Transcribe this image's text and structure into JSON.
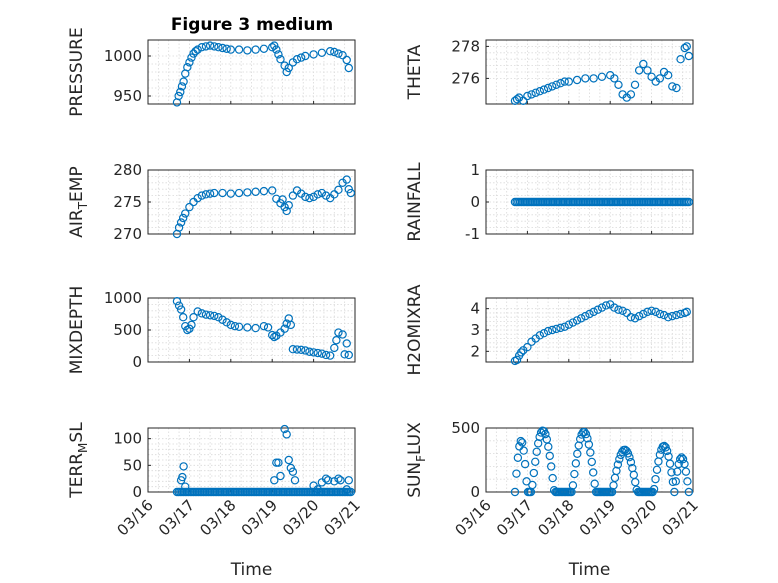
{
  "figure": {
    "title": "Figure 3 medium",
    "x_tick_labels": [
      "03/16",
      "03/17",
      "03/18",
      "03/19",
      "03/20",
      "03/21"
    ],
    "x_range": [
      0,
      5
    ],
    "x_label": "Time",
    "marker_color": "#0072BD"
  },
  "chart_data": [
    {
      "type": "scatter",
      "ylabel_main": "PRESSURE",
      "ylabel_sub": "",
      "ylim": [
        940,
        1020
      ],
      "yticks": [
        950,
        1000
      ],
      "ytick_labels": [
        "950",
        "1000"
      ],
      "x_from": 0.7,
      "x_to": 4.9,
      "points": [
        [
          0.7,
          942
        ],
        [
          0.74,
          950
        ],
        [
          0.78,
          955
        ],
        [
          0.82,
          962
        ],
        [
          0.86,
          968
        ],
        [
          0.9,
          978
        ],
        [
          0.95,
          986
        ],
        [
          1.0,
          992
        ],
        [
          1.05,
          998
        ],
        [
          1.1,
          1003
        ],
        [
          1.15,
          1006
        ],
        [
          1.2,
          1008
        ],
        [
          1.3,
          1011
        ],
        [
          1.4,
          1012
        ],
        [
          1.5,
          1013
        ],
        [
          1.6,
          1012
        ],
        [
          1.7,
          1011
        ],
        [
          1.8,
          1010
        ],
        [
          1.9,
          1009
        ],
        [
          2.0,
          1008
        ],
        [
          2.2,
          1008
        ],
        [
          2.4,
          1007
        ],
        [
          2.6,
          1008
        ],
        [
          2.8,
          1009
        ],
        [
          3.0,
          1011
        ],
        [
          3.05,
          1013
        ],
        [
          3.1,
          1008
        ],
        [
          3.15,
          1002
        ],
        [
          3.2,
          996
        ],
        [
          3.3,
          988
        ],
        [
          3.35,
          980
        ],
        [
          3.4,
          985
        ],
        [
          3.5,
          992
        ],
        [
          3.6,
          996
        ],
        [
          3.7,
          998
        ],
        [
          3.8,
          1000
        ],
        [
          4.0,
          1002
        ],
        [
          4.2,
          1004
        ],
        [
          4.4,
          1006
        ],
        [
          4.5,
          1005
        ],
        [
          4.6,
          1003
        ],
        [
          4.7,
          1001
        ],
        [
          4.8,
          995
        ],
        [
          4.85,
          985
        ]
      ]
    },
    {
      "type": "scatter",
      "ylabel_main": "THETA",
      "ylabel_sub": "",
      "ylim": [
        274.4,
        278.4
      ],
      "yticks": [
        276,
        278
      ],
      "ytick_labels": [
        "276",
        "278"
      ],
      "x_from": 0.7,
      "x_to": 4.9,
      "points": [
        [
          0.7,
          274.6
        ],
        [
          0.75,
          274.7
        ],
        [
          0.8,
          274.8
        ],
        [
          0.9,
          274.6
        ],
        [
          1.0,
          274.9
        ],
        [
          1.1,
          275.0
        ],
        [
          1.2,
          275.1
        ],
        [
          1.3,
          275.2
        ],
        [
          1.4,
          275.3
        ],
        [
          1.5,
          275.4
        ],
        [
          1.6,
          275.5
        ],
        [
          1.7,
          275.6
        ],
        [
          1.8,
          275.7
        ],
        [
          1.9,
          275.8
        ],
        [
          2.0,
          275.8
        ],
        [
          2.2,
          275.9
        ],
        [
          2.4,
          276.0
        ],
        [
          2.6,
          276.0
        ],
        [
          2.8,
          276.1
        ],
        [
          3.0,
          276.2
        ],
        [
          3.1,
          276.0
        ],
        [
          3.2,
          275.6
        ],
        [
          3.3,
          275.0
        ],
        [
          3.4,
          274.8
        ],
        [
          3.5,
          275.0
        ],
        [
          3.6,
          275.6
        ],
        [
          3.7,
          276.5
        ],
        [
          3.8,
          276.9
        ],
        [
          3.9,
          276.5
        ],
        [
          4.0,
          276.1
        ],
        [
          4.1,
          275.8
        ],
        [
          4.2,
          276.0
        ],
        [
          4.3,
          276.4
        ],
        [
          4.4,
          276.2
        ],
        [
          4.5,
          275.5
        ],
        [
          4.6,
          275.4
        ],
        [
          4.7,
          277.2
        ],
        [
          4.8,
          277.9
        ],
        [
          4.85,
          278.0
        ],
        [
          4.9,
          277.4
        ]
      ]
    },
    {
      "type": "scatter",
      "ylabel_main": "AIR",
      "ylabel_sub": "T",
      "ylabel_tail": "EMP",
      "ylim": [
        270,
        280
      ],
      "yticks": [
        270,
        275,
        280
      ],
      "ytick_labels": [
        "270",
        "275",
        "280"
      ],
      "x_from": 0.7,
      "x_to": 4.9,
      "points": [
        [
          0.7,
          270.0
        ],
        [
          0.75,
          271.0
        ],
        [
          0.8,
          271.8
        ],
        [
          0.85,
          272.5
        ],
        [
          0.9,
          273.2
        ],
        [
          1.0,
          274.2
        ],
        [
          1.1,
          275.0
        ],
        [
          1.2,
          275.6
        ],
        [
          1.3,
          276.0
        ],
        [
          1.4,
          276.2
        ],
        [
          1.5,
          276.3
        ],
        [
          1.6,
          276.4
        ],
        [
          1.8,
          276.4
        ],
        [
          2.0,
          276.3
        ],
        [
          2.2,
          276.4
        ],
        [
          2.4,
          276.5
        ],
        [
          2.6,
          276.6
        ],
        [
          2.8,
          276.7
        ],
        [
          3.0,
          276.8
        ],
        [
          3.1,
          275.5
        ],
        [
          3.2,
          274.8
        ],
        [
          3.25,
          275.4
        ],
        [
          3.3,
          274.2
        ],
        [
          3.35,
          273.6
        ],
        [
          3.4,
          274.5
        ],
        [
          3.5,
          276.0
        ],
        [
          3.6,
          276.8
        ],
        [
          3.7,
          276.3
        ],
        [
          3.8,
          275.8
        ],
        [
          3.9,
          275.6
        ],
        [
          4.0,
          275.8
        ],
        [
          4.1,
          276.2
        ],
        [
          4.2,
          276.4
        ],
        [
          4.3,
          276.0
        ],
        [
          4.4,
          275.6
        ],
        [
          4.5,
          276.2
        ],
        [
          4.6,
          276.9
        ],
        [
          4.7,
          278.0
        ],
        [
          4.8,
          278.5
        ],
        [
          4.85,
          277.0
        ],
        [
          4.9,
          276.4
        ]
      ]
    },
    {
      "type": "scatter",
      "ylabel_main": "RAINFALL",
      "ylabel_sub": "",
      "ylim": [
        -1,
        1
      ],
      "yticks": [
        -1,
        0,
        1
      ],
      "ytick_labels": [
        "-1",
        "0",
        "1"
      ],
      "x_from": 0.7,
      "x_to": 4.9,
      "constant_value": 0,
      "points": []
    },
    {
      "type": "scatter",
      "ylabel_main": "MIXDEPTH",
      "ylabel_sub": "",
      "ylim": [
        0,
        1000
      ],
      "yticks": [
        0,
        500,
        1000
      ],
      "ytick_labels": [
        "0",
        "500",
        "1000"
      ],
      "x_from": 0.7,
      "x_to": 4.9,
      "points": [
        [
          0.7,
          950
        ],
        [
          0.75,
          880
        ],
        [
          0.8,
          820
        ],
        [
          0.85,
          700
        ],
        [
          0.9,
          560
        ],
        [
          0.95,
          500
        ],
        [
          1.0,
          520
        ],
        [
          1.05,
          580
        ],
        [
          1.1,
          700
        ],
        [
          1.2,
          790
        ],
        [
          1.3,
          760
        ],
        [
          1.4,
          740
        ],
        [
          1.5,
          730
        ],
        [
          1.6,
          720
        ],
        [
          1.7,
          700
        ],
        [
          1.8,
          660
        ],
        [
          1.9,
          620
        ],
        [
          2.0,
          580
        ],
        [
          2.1,
          560
        ],
        [
          2.2,
          550
        ],
        [
          2.4,
          540
        ],
        [
          2.6,
          530
        ],
        [
          2.8,
          560
        ],
        [
          2.9,
          540
        ],
        [
          3.0,
          420
        ],
        [
          3.05,
          390
        ],
        [
          3.1,
          410
        ],
        [
          3.2,
          460
        ],
        [
          3.3,
          520
        ],
        [
          3.35,
          600
        ],
        [
          3.4,
          680
        ],
        [
          3.45,
          580
        ],
        [
          3.5,
          200
        ],
        [
          3.6,
          195
        ],
        [
          3.7,
          190
        ],
        [
          3.8,
          180
        ],
        [
          3.9,
          160
        ],
        [
          4.0,
          150
        ],
        [
          4.1,
          140
        ],
        [
          4.2,
          130
        ],
        [
          4.3,
          110
        ],
        [
          4.4,
          100
        ],
        [
          4.5,
          220
        ],
        [
          4.55,
          340
        ],
        [
          4.6,
          460
        ],
        [
          4.7,
          430
        ],
        [
          4.75,
          120
        ],
        [
          4.8,
          290
        ],
        [
          4.85,
          110
        ]
      ]
    },
    {
      "type": "scatter",
      "ylabel_main": "H2OMIXRA",
      "ylabel_sub": "",
      "ylim": [
        1.5,
        4.5
      ],
      "yticks": [
        2,
        3,
        4
      ],
      "ytick_labels": [
        "2",
        "3",
        "4"
      ],
      "x_from": 0.7,
      "x_to": 4.9,
      "points": [
        [
          0.7,
          1.55
        ],
        [
          0.75,
          1.6
        ],
        [
          0.8,
          1.8
        ],
        [
          0.85,
          1.95
        ],
        [
          0.9,
          2.05
        ],
        [
          1.0,
          2.2
        ],
        [
          1.1,
          2.45
        ],
        [
          1.2,
          2.6
        ],
        [
          1.3,
          2.75
        ],
        [
          1.4,
          2.85
        ],
        [
          1.5,
          2.95
        ],
        [
          1.6,
          3.0
        ],
        [
          1.7,
          3.05
        ],
        [
          1.8,
          3.1
        ],
        [
          1.9,
          3.15
        ],
        [
          2.0,
          3.25
        ],
        [
          2.1,
          3.35
        ],
        [
          2.2,
          3.45
        ],
        [
          2.3,
          3.55
        ],
        [
          2.4,
          3.65
        ],
        [
          2.5,
          3.75
        ],
        [
          2.6,
          3.85
        ],
        [
          2.7,
          3.95
        ],
        [
          2.8,
          4.05
        ],
        [
          2.9,
          4.15
        ],
        [
          3.0,
          4.2
        ],
        [
          3.1,
          4.05
        ],
        [
          3.2,
          3.95
        ],
        [
          3.3,
          3.9
        ],
        [
          3.4,
          3.8
        ],
        [
          3.5,
          3.6
        ],
        [
          3.6,
          3.55
        ],
        [
          3.7,
          3.65
        ],
        [
          3.8,
          3.75
        ],
        [
          3.9,
          3.85
        ],
        [
          4.0,
          3.9
        ],
        [
          4.1,
          3.85
        ],
        [
          4.2,
          3.75
        ],
        [
          4.3,
          3.7
        ],
        [
          4.4,
          3.6
        ],
        [
          4.5,
          3.65
        ],
        [
          4.6,
          3.7
        ],
        [
          4.7,
          3.75
        ],
        [
          4.8,
          3.8
        ],
        [
          4.85,
          3.85
        ]
      ]
    },
    {
      "type": "scatter",
      "ylabel_main": "TERR",
      "ylabel_sub": "M",
      "ylabel_tail": "SL",
      "ylim": [
        0,
        120
      ],
      "yticks": [
        0,
        50,
        100
      ],
      "ytick_labels": [
        "0",
        "50",
        "100"
      ],
      "x_from": 0.7,
      "x_to": 4.9,
      "baseline_value": 0,
      "points": [
        [
          0.8,
          22
        ],
        [
          0.83,
          28
        ],
        [
          0.86,
          48
        ],
        [
          0.9,
          10
        ],
        [
          3.05,
          22
        ],
        [
          3.1,
          55
        ],
        [
          3.15,
          55
        ],
        [
          3.2,
          30
        ],
        [
          3.3,
          118
        ],
        [
          3.35,
          108
        ],
        [
          3.4,
          60
        ],
        [
          3.45,
          45
        ],
        [
          3.5,
          38
        ],
        [
          3.55,
          22
        ],
        [
          4.0,
          12
        ],
        [
          4.1,
          5
        ],
        [
          4.2,
          18
        ],
        [
          4.3,
          25
        ],
        [
          4.35,
          22
        ],
        [
          4.5,
          20
        ],
        [
          4.6,
          25
        ],
        [
          4.65,
          22
        ],
        [
          4.8,
          5
        ],
        [
          4.85,
          22
        ]
      ]
    },
    {
      "type": "scatter",
      "ylabel_main": "SUN",
      "ylabel_sub": "F",
      "ylabel_tail": "LUX",
      "ylim": [
        0,
        500
      ],
      "yticks": [
        0,
        500
      ],
      "ytick_labels": [
        "0",
        "500"
      ],
      "x_from": 0.7,
      "x_to": 4.9,
      "baseline_value": 0,
      "day_arcs": [
        {
          "start": 0.7,
          "end": 1.0,
          "peak": 400
        },
        {
          "start": 1.1,
          "end": 1.65,
          "peak": 480
        },
        {
          "start": 2.08,
          "end": 2.65,
          "peak": 470
        },
        {
          "start": 3.05,
          "end": 3.65,
          "peak": 330
        },
        {
          "start": 4.05,
          "end": 4.55,
          "peak": 360
        },
        {
          "start": 4.55,
          "end": 4.9,
          "peak": 270
        }
      ],
      "points": []
    }
  ]
}
